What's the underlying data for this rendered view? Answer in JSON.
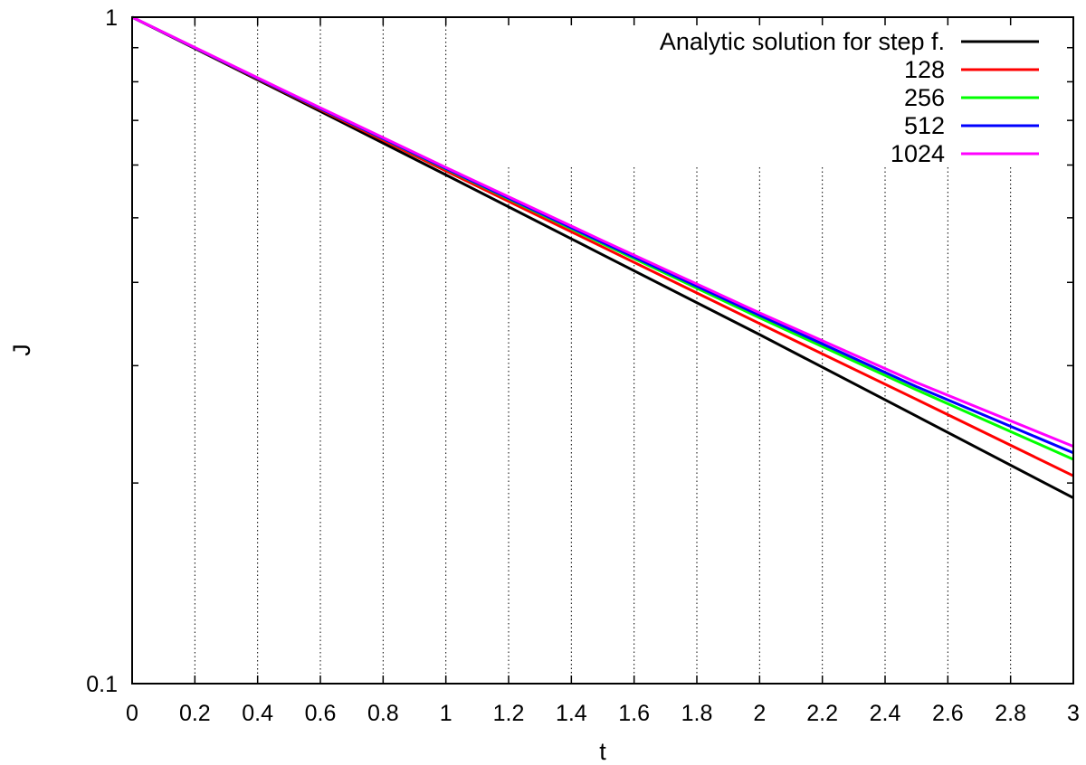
{
  "chart_data": {
    "type": "line",
    "title": "",
    "xlabel": "t",
    "ylabel": "J",
    "xlim": [
      0,
      3
    ],
    "ylim": [
      0.1,
      1
    ],
    "yscale": "log",
    "grid": "vertical dotted at x ticks",
    "legend_position": "top-right",
    "x_ticks": [
      {
        "value": 0,
        "label": "0"
      },
      {
        "value": 0.2,
        "label": "0.2"
      },
      {
        "value": 0.4,
        "label": "0.4"
      },
      {
        "value": 0.6,
        "label": "0.6"
      },
      {
        "value": 0.8,
        "label": "0.8"
      },
      {
        "value": 1,
        "label": "1"
      },
      {
        "value": 1.2,
        "label": "1.2"
      },
      {
        "value": 1.4,
        "label": "1.4"
      },
      {
        "value": 1.6,
        "label": "1.6"
      },
      {
        "value": 1.8,
        "label": "1.8"
      },
      {
        "value": 2,
        "label": "2"
      },
      {
        "value": 2.2,
        "label": "2.2"
      },
      {
        "value": 2.4,
        "label": "2.4"
      },
      {
        "value": 2.6,
        "label": "2.6"
      },
      {
        "value": 2.8,
        "label": "2.8"
      },
      {
        "value": 3,
        "label": "3"
      }
    ],
    "y_ticks": [
      {
        "value": 0.1,
        "label": "0.1"
      },
      {
        "value": 1,
        "label": "1"
      }
    ],
    "y_minor_ticks": [
      0.2,
      0.3,
      0.4,
      0.5,
      0.6,
      0.7,
      0.8,
      0.9
    ],
    "series": [
      {
        "name": "Analytic solution for step f.",
        "color": "#000000",
        "x": [
          0,
          0.5,
          1,
          1.5,
          2,
          2.5,
          3
        ],
        "y": [
          1,
          0.763,
          0.58,
          0.44,
          0.334,
          0.252,
          0.19
        ]
      },
      {
        "name": "128",
        "color": "#ff0000",
        "x": [
          0,
          0.5,
          1,
          1.5,
          2,
          2.5,
          3
        ],
        "y": [
          1,
          0.766,
          0.588,
          0.452,
          0.347,
          0.267,
          0.205
        ]
      },
      {
        "name": "256",
        "color": "#00ff00",
        "x": [
          0,
          0.5,
          1,
          1.5,
          2,
          2.5,
          3
        ],
        "y": [
          1,
          0.768,
          0.592,
          0.457,
          0.354,
          0.276,
          0.217
        ]
      },
      {
        "name": "512",
        "color": "#0000ff",
        "x": [
          0,
          0.5,
          1,
          1.5,
          2,
          2.5,
          3
        ],
        "y": [
          1,
          0.768,
          0.593,
          0.459,
          0.357,
          0.279,
          0.222
        ]
      },
      {
        "name": "1024",
        "color": "#ff00ff",
        "x": [
          0,
          0.5,
          1,
          1.5,
          2,
          2.5,
          3
        ],
        "y": [
          1,
          0.77,
          0.595,
          0.462,
          0.36,
          0.283,
          0.227
        ]
      }
    ]
  }
}
